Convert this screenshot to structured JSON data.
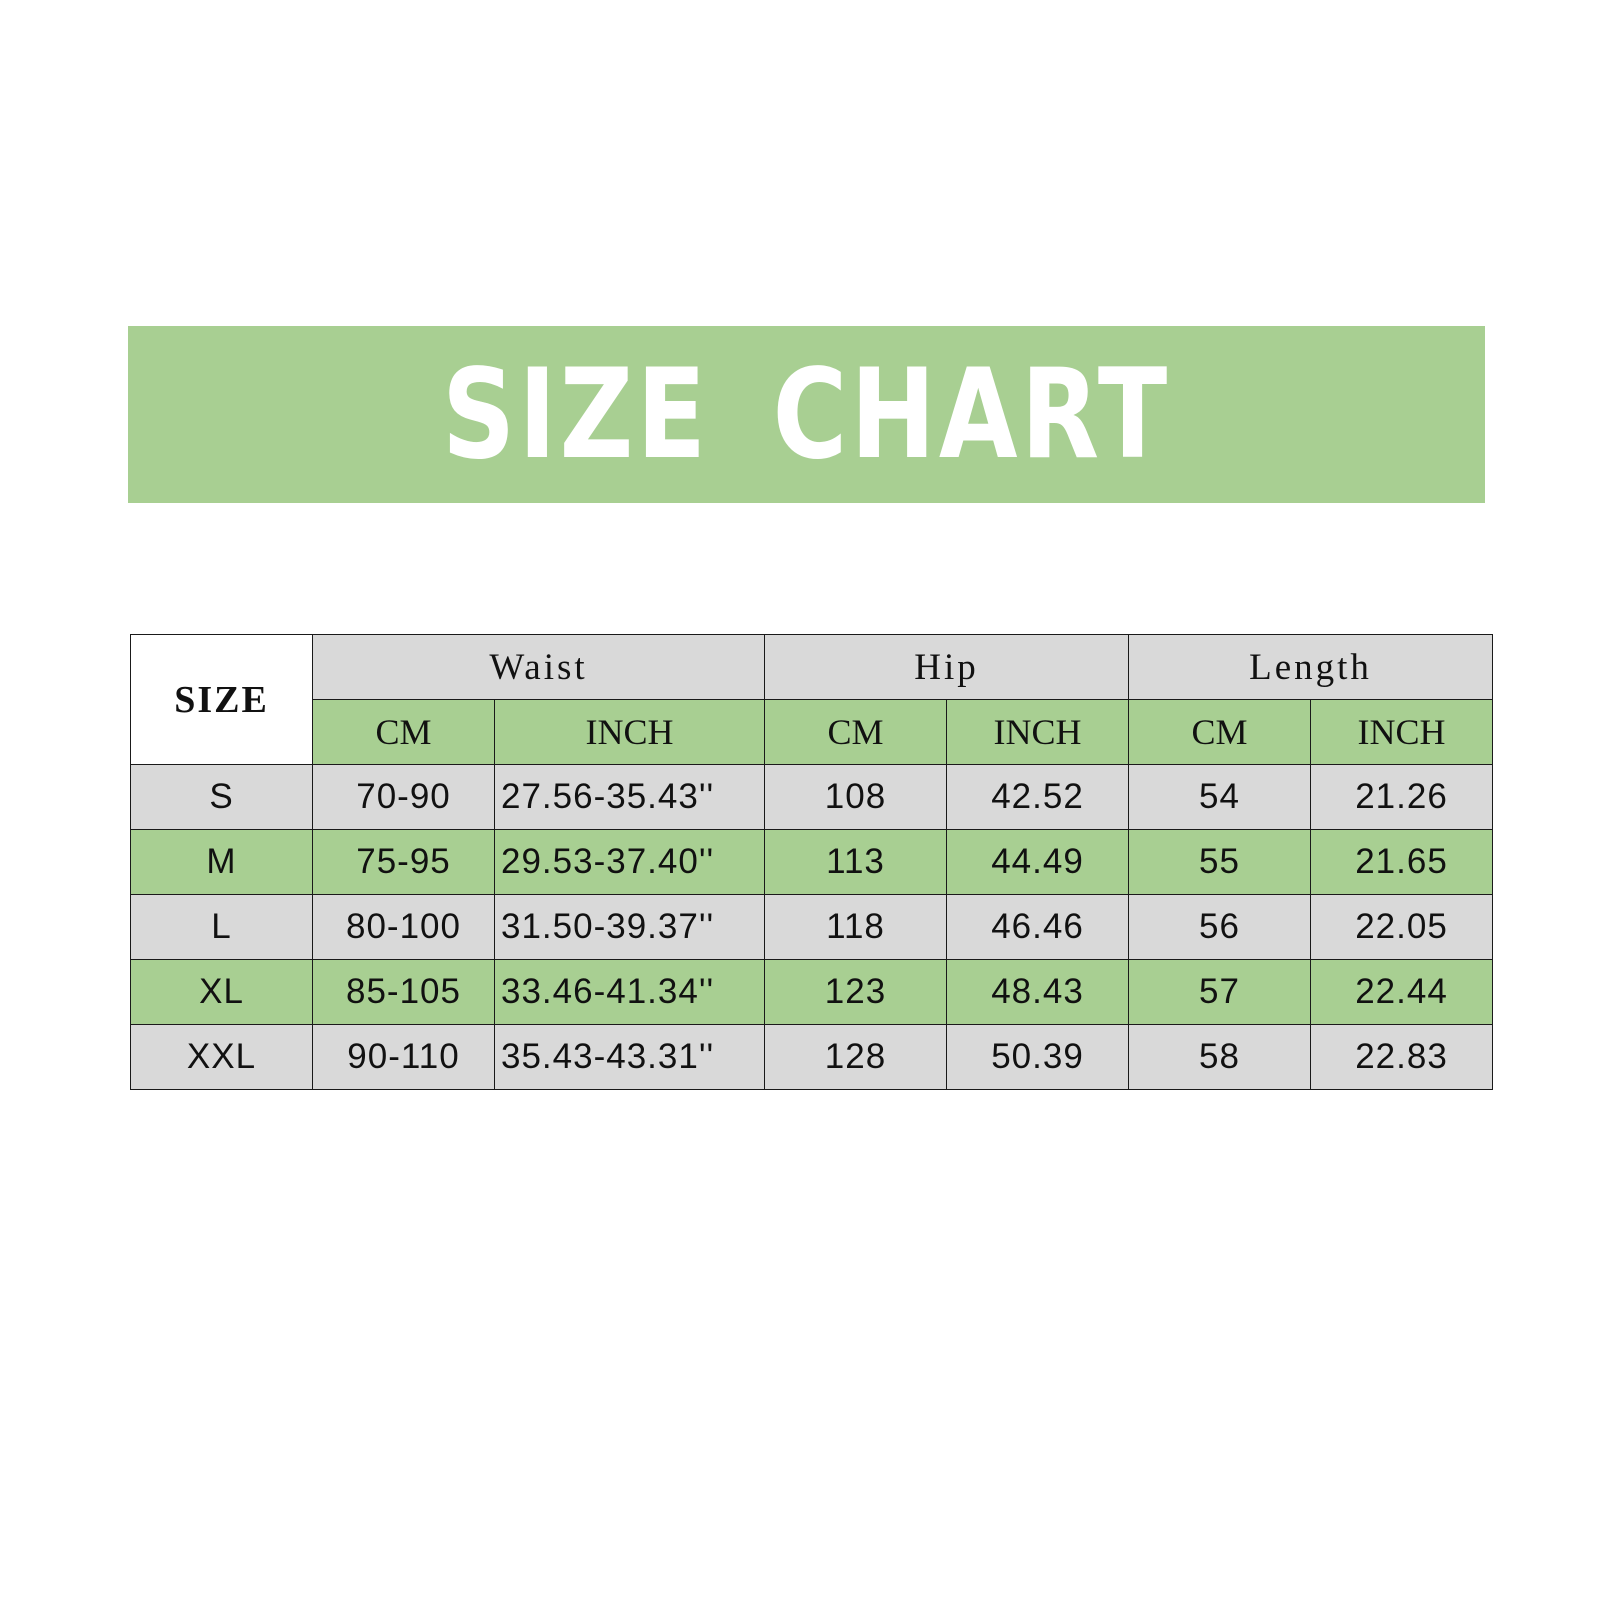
{
  "colors": {
    "green": "#a8cf92",
    "gray": "#d9d9d9",
    "white": "#ffffff",
    "border": "#1a1a1a"
  },
  "banner": {
    "title": "SIZE CHART"
  },
  "table": {
    "corner": "SIZE",
    "groups": [
      "Waist",
      "Hip",
      "Length"
    ],
    "subheaders": [
      "CM",
      "INCH",
      "CM",
      "INCH",
      "CM",
      "INCH"
    ],
    "rows": [
      {
        "size": "S",
        "waist_cm": "70-90",
        "waist_inch": "27.56-35.43''",
        "hip_cm": "108",
        "hip_inch": "42.52",
        "length_cm": "54",
        "length_inch": "21.26"
      },
      {
        "size": "M",
        "waist_cm": "75-95",
        "waist_inch": "29.53-37.40''",
        "hip_cm": "113",
        "hip_inch": "44.49",
        "length_cm": "55",
        "length_inch": "21.65"
      },
      {
        "size": "L",
        "waist_cm": "80-100",
        "waist_inch": "31.50-39.37''",
        "hip_cm": "118",
        "hip_inch": "46.46",
        "length_cm": "56",
        "length_inch": "22.05"
      },
      {
        "size": "XL",
        "waist_cm": "85-105",
        "waist_inch": "33.46-41.34''",
        "hip_cm": "123",
        "hip_inch": "48.43",
        "length_cm": "57",
        "length_inch": "22.44"
      },
      {
        "size": "XXL",
        "waist_cm": "90-110",
        "waist_inch": "35.43-43.31''",
        "hip_cm": "128",
        "hip_inch": "50.39",
        "length_cm": "58",
        "length_inch": "22.83"
      }
    ]
  }
}
